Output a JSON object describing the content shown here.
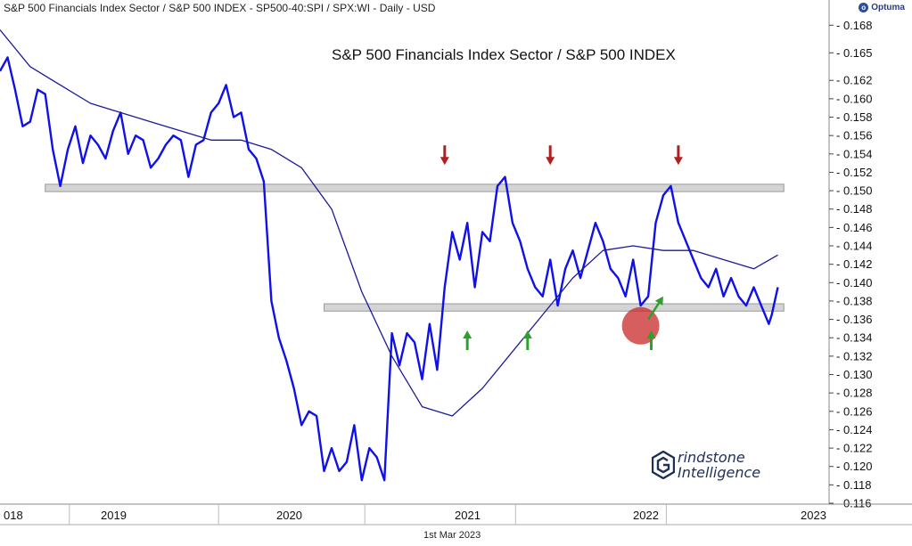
{
  "header": {
    "text": "S&P 500 Financials Index Sector / S&P 500 INDEX - SP500-40:SPI / SPX:WI - Daily - USD"
  },
  "brand": {
    "name": "Optuma"
  },
  "footer": {
    "date_label": "1st Mar 2023"
  },
  "logo": {
    "line1": "rindstone",
    "line2": "Intelligence"
  },
  "colors": {
    "price_line": "#1010e8",
    "moving_average": "#1a1a9a",
    "resistance_band": "#d4d4d4",
    "support_band": "#d4d4d4",
    "down_arrow": "#b02020",
    "up_arrow": "#2ea02e",
    "highlight_circle": "#c8282a"
  },
  "chart_data": {
    "type": "line",
    "title": "S&P 500 Financials Index Sector / S&P 500 INDEX",
    "xlabel": "",
    "ylabel": "",
    "ylim": [
      0.116,
      0.169
    ],
    "x_range": [
      2018.0,
      2023.5
    ],
    "y_ticks": [
      "0.116",
      "0.118",
      "0.120",
      "0.122",
      "0.124",
      "0.126",
      "0.128",
      "0.130",
      "0.132",
      "0.134",
      "0.136",
      "0.138",
      "0.140",
      "0.142",
      "0.144",
      "0.146",
      "0.148",
      "0.150",
      "0.152",
      "0.154",
      "0.156",
      "0.158",
      "0.160",
      "0.162",
      "0.165",
      "0.168"
    ],
    "x_ticks": [
      "018",
      "2019",
      "2020",
      "2021",
      "2022",
      "2023"
    ],
    "series": [
      {
        "role": "price",
        "x": [
          2018.0,
          2018.05,
          2018.1,
          2018.15,
          2018.2,
          2018.25,
          2018.3,
          2018.35,
          2018.4,
          2018.45,
          2018.5,
          2018.55,
          2018.6,
          2018.65,
          2018.7,
          2018.75,
          2018.8,
          2018.85,
          2018.9,
          2018.95,
          2019.0,
          2019.05,
          2019.1,
          2019.15,
          2019.2,
          2019.25,
          2019.3,
          2019.35,
          2019.4,
          2019.45,
          2019.5,
          2019.55,
          2019.6,
          2019.65,
          2019.7,
          2019.75,
          2019.8,
          2019.85,
          2019.9,
          2019.95,
          2020.0,
          2020.05,
          2020.1,
          2020.15,
          2020.2,
          2020.25,
          2020.3,
          2020.35,
          2020.4,
          2020.45,
          2020.5,
          2020.55,
          2020.6,
          2020.65,
          2020.7,
          2020.75,
          2020.8,
          2020.85,
          2020.9,
          2020.95,
          2021.0,
          2021.05,
          2021.1,
          2021.15,
          2021.2,
          2021.25,
          2021.3,
          2021.35,
          2021.4,
          2021.45,
          2021.5,
          2021.55,
          2021.6,
          2021.65,
          2021.7,
          2021.75,
          2021.8,
          2021.85,
          2021.9,
          2021.95,
          2022.0,
          2022.05,
          2022.1,
          2022.15,
          2022.2,
          2022.25,
          2022.3,
          2022.35,
          2022.4,
          2022.45,
          2022.5,
          2022.55,
          2022.6,
          2022.65,
          2022.7,
          2022.75,
          2022.8,
          2022.85,
          2022.9,
          2022.95,
          2023.0,
          2023.05,
          2023.1,
          2023.12,
          2023.16
        ],
        "y": [
          0.163,
          0.1645,
          0.161,
          0.157,
          0.1575,
          0.161,
          0.1605,
          0.1545,
          0.1505,
          0.1545,
          0.157,
          0.153,
          0.156,
          0.155,
          0.1535,
          0.1565,
          0.1585,
          0.154,
          0.156,
          0.1555,
          0.1525,
          0.1535,
          0.155,
          0.156,
          0.1555,
          0.1515,
          0.155,
          0.1555,
          0.1585,
          0.1595,
          0.1615,
          0.158,
          0.1585,
          0.1545,
          0.1535,
          0.151,
          0.138,
          0.134,
          0.1315,
          0.1285,
          0.1245,
          0.126,
          0.1255,
          0.1195,
          0.122,
          0.1195,
          0.1205,
          0.1245,
          0.1185,
          0.122,
          0.121,
          0.1185,
          0.1345,
          0.131,
          0.1345,
          0.1335,
          0.1295,
          0.1355,
          0.1305,
          0.1395,
          0.1455,
          0.1425,
          0.1465,
          0.1395,
          0.1455,
          0.1445,
          0.1505,
          0.1515,
          0.1465,
          0.1445,
          0.1415,
          0.1395,
          0.1385,
          0.1425,
          0.1375,
          0.1415,
          0.1435,
          0.1405,
          0.1435,
          0.1465,
          0.1445,
          0.1415,
          0.1405,
          0.1385,
          0.1425,
          0.1375,
          0.1385,
          0.1465,
          0.1495,
          0.1505,
          0.1465,
          0.1445,
          0.1425,
          0.1405,
          0.1395,
          0.1415,
          0.1385,
          0.1405,
          0.1385,
          0.1375,
          0.1395,
          0.1375,
          0.1355,
          0.1365,
          0.1395
        ]
      },
      {
        "role": "moving-average",
        "x": [
          2018.0,
          2018.2,
          2018.4,
          2018.6,
          2018.8,
          2019.0,
          2019.2,
          2019.4,
          2019.6,
          2019.8,
          2020.0,
          2020.2,
          2020.4,
          2020.6,
          2020.8,
          2021.0,
          2021.2,
          2021.4,
          2021.6,
          2021.8,
          2022.0,
          2022.2,
          2022.4,
          2022.6,
          2022.8,
          2023.0,
          2023.16
        ],
        "y": [
          0.1675,
          0.1635,
          0.1615,
          0.1595,
          0.1585,
          0.1575,
          0.1565,
          0.1555,
          0.1555,
          0.1545,
          0.1525,
          0.148,
          0.139,
          0.132,
          0.1265,
          0.1255,
          0.1285,
          0.1325,
          0.1365,
          0.1405,
          0.1435,
          0.144,
          0.1435,
          0.1435,
          0.1425,
          0.1415,
          0.143
        ]
      }
    ],
    "annotations": {
      "resistance_level": 0.1503,
      "support_level": 0.1373,
      "down_arrows_x": [
        2020.95,
        2021.65,
        2022.5
      ],
      "up_arrows_x": [
        2021.1,
        2021.5,
        2022.32
      ],
      "highlight_circle": {
        "x": 2022.25,
        "y": 0.1353
      },
      "up_arrow_diagonal": {
        "from": [
          2022.3,
          0.136
        ],
        "to": [
          2022.4,
          0.1385
        ]
      }
    }
  }
}
